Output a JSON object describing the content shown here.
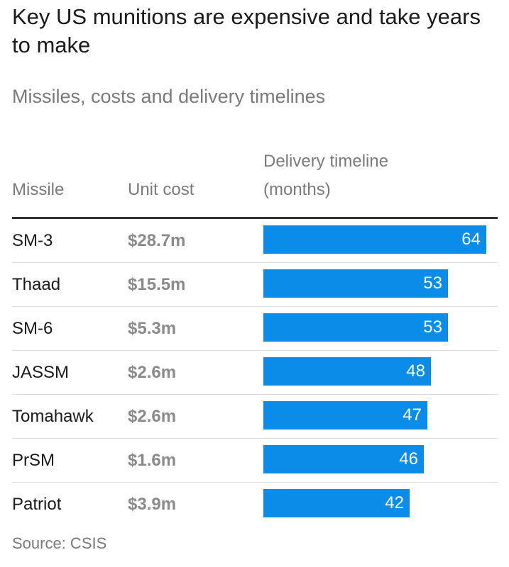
{
  "title": "Key US munitions are expensive and take years to make",
  "subtitle": "Missiles, costs and delivery timelines",
  "columns": {
    "missile": "Missile",
    "unit_cost": "Unit cost",
    "delivery_line1": "Delivery timeline",
    "delivery_line2": "(months)"
  },
  "source": "Source: CSIS",
  "colors": {
    "bar": "#0a8ce8",
    "cost_text": "#8a8a8a"
  },
  "chart_data": {
    "type": "bar",
    "orientation": "horizontal",
    "title": "Key US munitions are expensive and take years to make",
    "subtitle": "Missiles, costs and delivery timelines",
    "categories": [
      "SM-3",
      "Thaad",
      "SM-6",
      "JASSM",
      "Tomahawk",
      "PrSM",
      "Patriot"
    ],
    "unit_costs": [
      "$28.7m",
      "$15.5m",
      "$5.3m",
      "$2.6m",
      "$2.6m",
      "$1.6m",
      "$3.9m"
    ],
    "series": [
      {
        "name": "Delivery timeline (months)",
        "values": [
          64,
          53,
          53,
          48,
          47,
          46,
          42
        ]
      }
    ],
    "xlim": [
      0,
      64
    ],
    "grid": false,
    "legend": "none"
  }
}
